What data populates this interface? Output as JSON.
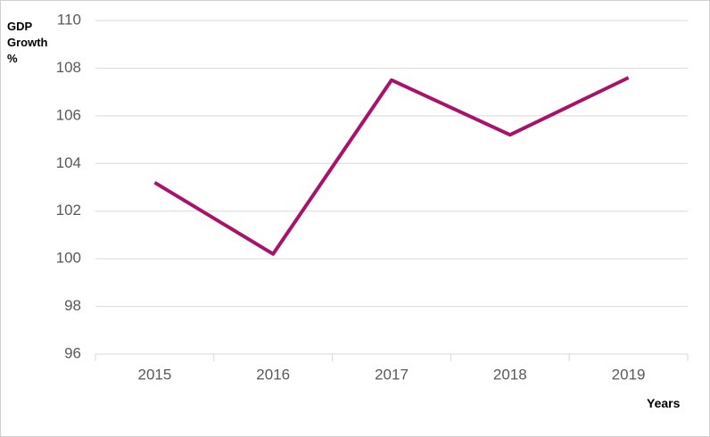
{
  "chart_data": {
    "type": "line",
    "y_label": "GDP Growth %",
    "x_label": "Years",
    "categories": [
      "2015",
      "2016",
      "2017",
      "2018",
      "2019"
    ],
    "series": [
      {
        "name": "GDP Growth",
        "color": "#a8126a",
        "values": [
          103.2,
          100.2,
          107.5,
          105.2,
          107.6
        ]
      }
    ],
    "ylim": [
      96,
      110
    ],
    "yticks": [
      96,
      98,
      100,
      102,
      104,
      106,
      108,
      110
    ],
    "grid": true,
    "legend": false
  }
}
